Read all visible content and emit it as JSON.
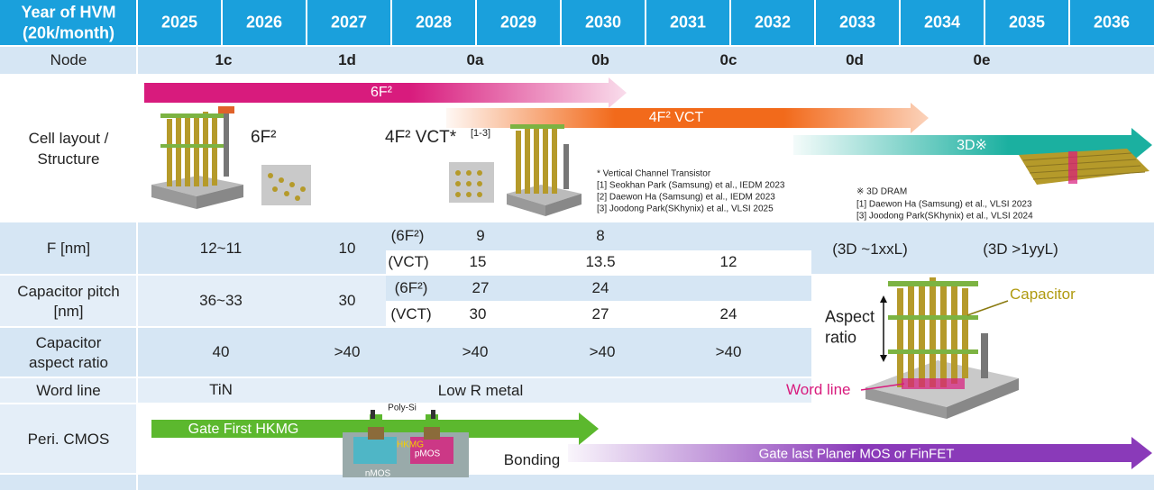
{
  "header": {
    "title_lines": [
      "Year of HVM",
      "(20k/month)"
    ],
    "years": [
      "2025",
      "2026",
      "2027",
      "2028",
      "2029",
      "2030",
      "2031",
      "2032",
      "2033",
      "2034",
      "2035",
      "2036"
    ]
  },
  "node": {
    "label": "Node",
    "values": [
      "1c",
      "1d",
      "0a",
      "0b",
      "0c",
      "0d",
      "0e"
    ]
  },
  "cell_layout": {
    "label_lines": [
      "Cell layout /",
      "Structure"
    ],
    "arrows": [
      "6F²",
      "4F² VCT",
      "3D※"
    ],
    "planar_label": "6F²",
    "vct_label": "4F² VCT*",
    "vct_ref": "[1-3]",
    "vct_notes": [
      "* Vertical Channel Transistor",
      "[1] Seokhan Park (Samsung) et al., IEDM 2023",
      "[2] Daewon Ha (Samsung) et al., IEDM 2023",
      "[3] Joodong Park(SKhynix) et al., VLSI 2025"
    ],
    "three_d_notes": [
      "※ 3D DRAM",
      "[1] Daewon Ha (Samsung) et al., VLSI 2023",
      "[3] Joodong Park(SKhynix) et al., VLSI 2024"
    ]
  },
  "f_nm": {
    "label": "F [nm]",
    "values": [
      "12~11",
      10
    ],
    "sub_6f2": {
      "label": "(6F²)",
      "values": [
        9,
        8
      ]
    },
    "sub_vct": {
      "label": "(VCT)",
      "values": [
        15,
        13.5,
        12
      ]
    },
    "three_d": [
      "(3D ~1xxL)",
      "(3D >1yyL)"
    ]
  },
  "cap_pitch": {
    "label_lines": [
      "Capacitor pitch",
      "[nm]"
    ],
    "values": [
      "36~33",
      30
    ],
    "sub_6f2": {
      "label": "(6F²)",
      "values": [
        27,
        24
      ]
    },
    "sub_vct": {
      "label": "(VCT)",
      "values": [
        30,
        27,
        24
      ]
    }
  },
  "aspect": {
    "label_lines": [
      "Capacitor",
      "aspect ratio"
    ],
    "values": [
      40,
      ">40",
      ">40",
      ">40",
      ">40"
    ]
  },
  "word_line": {
    "label": "Word line",
    "values": [
      "TiN",
      "Low R metal"
    ]
  },
  "peri": {
    "label": "Peri. CMOS",
    "gate_first": "Gate First HKMG",
    "gate_last": "Gate last Planer MOS or FinFET",
    "bonding": "Bonding",
    "diagram": {
      "poly": "Poly-Si",
      "hkmg": "HKMG",
      "nmos": "nMOS",
      "pmos": "pMOS"
    }
  },
  "capacitor_figure": {
    "aspect_lines": [
      "Aspect",
      "ratio"
    ],
    "capacitor": "Capacitor",
    "word_line": "Word line"
  }
}
